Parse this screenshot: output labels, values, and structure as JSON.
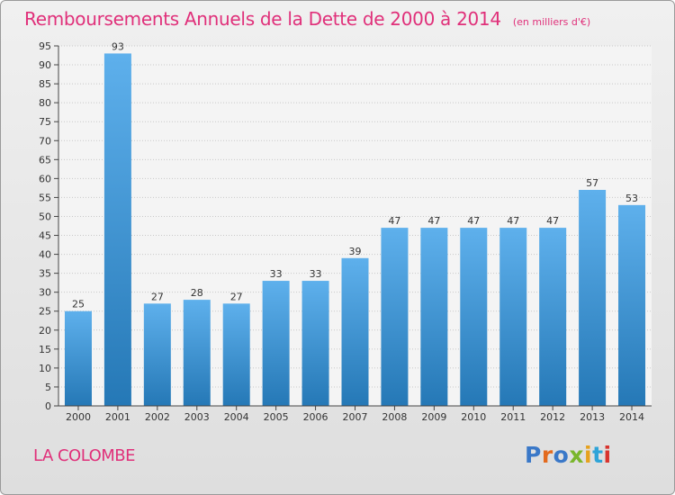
{
  "title": "Remboursements Annuels de la Dette de 2000 à 2014",
  "unit": "(en milliers d'€)",
  "entity": "LA COLOMBE",
  "brand": "Proxiti",
  "colors": {
    "title": "#e0307a",
    "bar_top": "#5eb0ec",
    "bar_bottom": "#2578b6",
    "brand_letters": [
      "#3a78c8",
      "#e36a1e",
      "#3a78c8",
      "#7ab62c",
      "#e6a21e",
      "#2fa4d8",
      "#d8342e"
    ]
  },
  "chart_data": {
    "type": "bar",
    "title": "Remboursements Annuels de la Dette de 2000 à 2014",
    "categories": [
      "2000",
      "2001",
      "2002",
      "2003",
      "2004",
      "2005",
      "2006",
      "2007",
      "2008",
      "2009",
      "2010",
      "2011",
      "2012",
      "2013",
      "2014"
    ],
    "values": [
      25,
      93,
      27,
      28,
      27,
      33,
      33,
      39,
      47,
      47,
      47,
      47,
      47,
      57,
      53
    ],
    "ylim": [
      0,
      95
    ],
    "yticks": [
      0,
      5,
      10,
      15,
      20,
      25,
      30,
      35,
      40,
      45,
      50,
      55,
      60,
      65,
      70,
      75,
      80,
      85,
      90,
      95
    ],
    "grid": true,
    "data_labels": true
  }
}
